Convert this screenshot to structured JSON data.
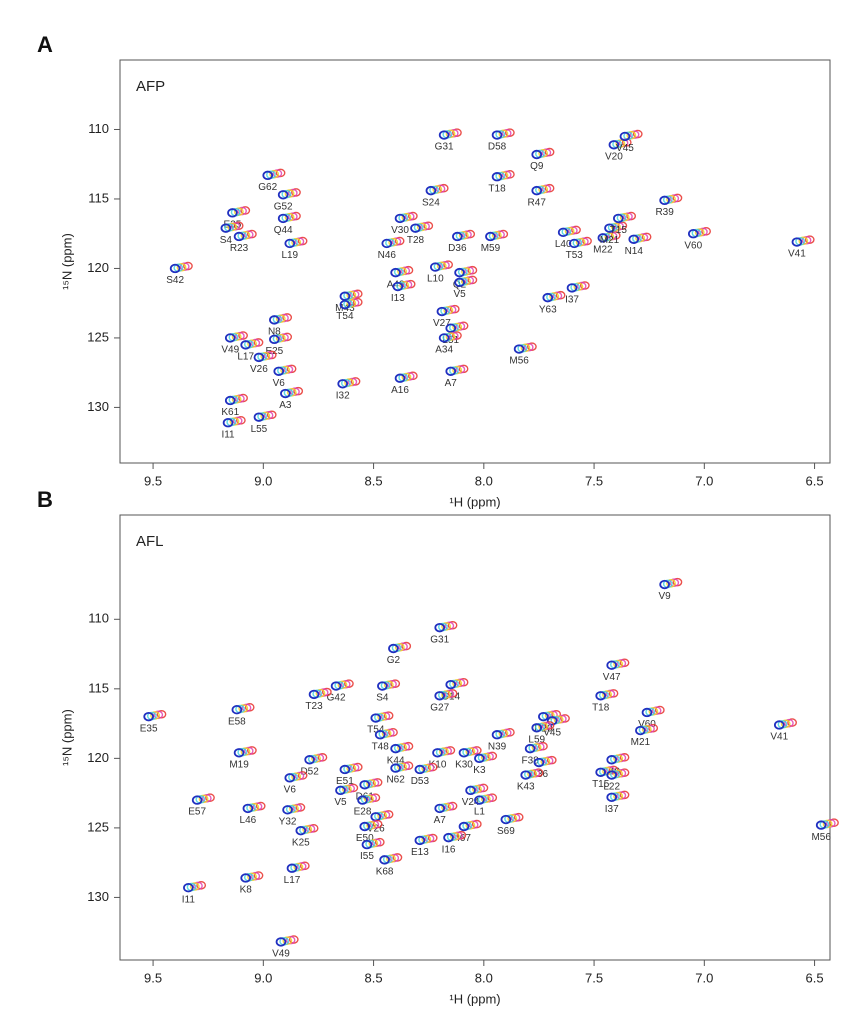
{
  "chart_data": [
    {
      "type": "scatter",
      "panel": "A",
      "title": "AFP",
      "x_label": "¹H (ppm)",
      "y_label": "¹⁵N (ppm)",
      "xlim": [
        9.65,
        6.43
      ],
      "ylim": [
        105,
        134
      ],
      "xticks": [
        9.5,
        {
          "value": 9,
          "label": "9.0"
        },
        8.5,
        {
          "value": 8,
          "label": "8.0"
        },
        7.5,
        {
          "value": 7,
          "label": "7.0"
        },
        6.5
      ],
      "yticks": [
        110,
        115,
        120,
        125,
        130
      ],
      "contour_colors": [
        "#e8302a",
        "#e040b0",
        "#f0d020",
        "#40d0e0",
        "#2030c0"
      ],
      "labels": [
        "G62",
        "G52",
        "E35",
        "S4",
        "Q44",
        "R23",
        "L19",
        "S42",
        "M43",
        "N8",
        "V49",
        "L17",
        "E25",
        "T54",
        "V26",
        "V6",
        "A3",
        "K61",
        "I32",
        "L55",
        "I11",
        "N46",
        "A48",
        "L10",
        "Q2",
        "I13",
        "V5",
        "V27",
        "L51",
        "A34",
        "A16",
        "A7",
        "M56",
        "G31",
        "D58",
        "Q9",
        "T18",
        "S24",
        "V30",
        "T28",
        "D36",
        "M59",
        "R47",
        "L40",
        "T53",
        "M22",
        "M21",
        "T15",
        "N14",
        "V60",
        "R39",
        "V41",
        "V20",
        "V45",
        "Y63",
        "I37"
      ],
      "x": [
        8.98,
        8.91,
        9.14,
        9.17,
        8.91,
        9.11,
        8.88,
        9.4,
        8.63,
        8.95,
        9.15,
        9.08,
        8.95,
        8.63,
        9.02,
        8.93,
        8.9,
        9.15,
        8.64,
        9.02,
        9.16,
        8.44,
        8.4,
        8.22,
        8.11,
        8.39,
        8.11,
        8.19,
        8.15,
        8.18,
        8.38,
        8.15,
        7.84,
        8.18,
        7.94,
        7.76,
        7.94,
        8.24,
        8.38,
        8.31,
        8.12,
        7.97,
        7.76,
        7.64,
        7.59,
        7.46,
        7.43,
        7.39,
        7.32,
        7.05,
        7.18,
        6.58,
        7.41,
        7.36,
        7.71,
        7.6
      ],
      "values": [
        113.3,
        114.7,
        116.0,
        117.1,
        116.4,
        117.7,
        118.2,
        120.0,
        122.0,
        123.7,
        125.0,
        125.5,
        125.1,
        122.6,
        126.4,
        127.4,
        129.0,
        129.5,
        128.3,
        130.7,
        131.1,
        118.2,
        120.3,
        119.9,
        120.3,
        121.3,
        121.0,
        123.1,
        124.3,
        125.0,
        127.9,
        127.4,
        125.8,
        110.4,
        110.4,
        111.8,
        113.4,
        114.4,
        116.4,
        117.1,
        117.7,
        117.7,
        114.4,
        117.4,
        118.2,
        117.8,
        117.1,
        116.4,
        117.9,
        117.5,
        115.1,
        118.1,
        111.1,
        110.5,
        122.1,
        121.4
      ]
    },
    {
      "type": "scatter",
      "panel": "B",
      "title": "AFL",
      "x_label": "¹H (ppm)",
      "y_label": "¹⁵N (ppm)",
      "xlim": [
        9.65,
        6.43
      ],
      "ylim": [
        102.5,
        134.5
      ],
      "xticks": [
        9.5,
        {
          "value": 9,
          "label": "9.0"
        },
        8.5,
        {
          "value": 8,
          "label": "8.0"
        },
        7.5,
        {
          "value": 7,
          "label": "7.0"
        },
        6.5
      ],
      "yticks": [
        110,
        115,
        120,
        125,
        130
      ],
      "contour_colors": [
        "#e8302a",
        "#e040b0",
        "#f0d020",
        "#40d0e0",
        "#2030c0"
      ],
      "labels": [
        "V9",
        "G2",
        "G31",
        "V47",
        "G42",
        "S4",
        "G14",
        "T18",
        "E58",
        "T23",
        "G27",
        "V60",
        "D20",
        "V45",
        "L59",
        "M21",
        "V41",
        "E35",
        "T54",
        "T48",
        "N39",
        "F38",
        "L40",
        "K44",
        "K10",
        "K30",
        "K3",
        "D36",
        "T15",
        "L22",
        "D52",
        "M19",
        "E51",
        "N62",
        "D53",
        "K43",
        "V6",
        "D61",
        "V5",
        "E28",
        "V24",
        "L1",
        "E57",
        "I37",
        "L46",
        "Y32",
        "A7",
        "V26",
        "E50",
        "S69",
        "I67",
        "K25",
        "I16",
        "E13",
        "I55",
        "K68",
        "M56",
        "K8",
        "L17",
        "I11",
        "V49"
      ],
      "x": [
        7.18,
        8.41,
        8.2,
        7.42,
        8.67,
        8.46,
        8.15,
        7.47,
        9.12,
        8.77,
        8.2,
        7.26,
        7.73,
        7.69,
        7.76,
        7.29,
        6.66,
        9.52,
        8.49,
        8.47,
        7.94,
        7.79,
        7.42,
        8.4,
        8.21,
        8.09,
        8.02,
        7.75,
        7.47,
        7.42,
        8.79,
        9.11,
        8.63,
        8.4,
        8.29,
        7.81,
        8.88,
        8.54,
        8.65,
        8.55,
        8.06,
        8.02,
        9.3,
        7.42,
        9.07,
        8.89,
        8.2,
        8.49,
        8.54,
        7.9,
        8.09,
        8.83,
        8.16,
        8.29,
        8.53,
        8.45,
        6.47,
        9.08,
        8.87,
        9.34,
        8.92
      ],
      "values": [
        107.5,
        112.1,
        110.6,
        113.3,
        114.8,
        114.8,
        114.7,
        115.5,
        116.5,
        115.4,
        115.5,
        116.7,
        117.0,
        117.3,
        117.8,
        118.0,
        117.6,
        117.0,
        117.1,
        118.3,
        118.3,
        119.3,
        120.1,
        119.3,
        119.6,
        119.6,
        120.0,
        120.3,
        121.0,
        121.2,
        120.1,
        119.6,
        120.8,
        120.7,
        120.8,
        121.2,
        121.4,
        121.9,
        122.3,
        123.0,
        122.3,
        123.0,
        123.0,
        122.8,
        123.6,
        123.7,
        123.6,
        124.2,
        124.9,
        124.4,
        124.9,
        125.2,
        125.7,
        125.9,
        126.2,
        127.3,
        124.8,
        128.6,
        127.9,
        129.3,
        133.2
      ]
    }
  ]
}
